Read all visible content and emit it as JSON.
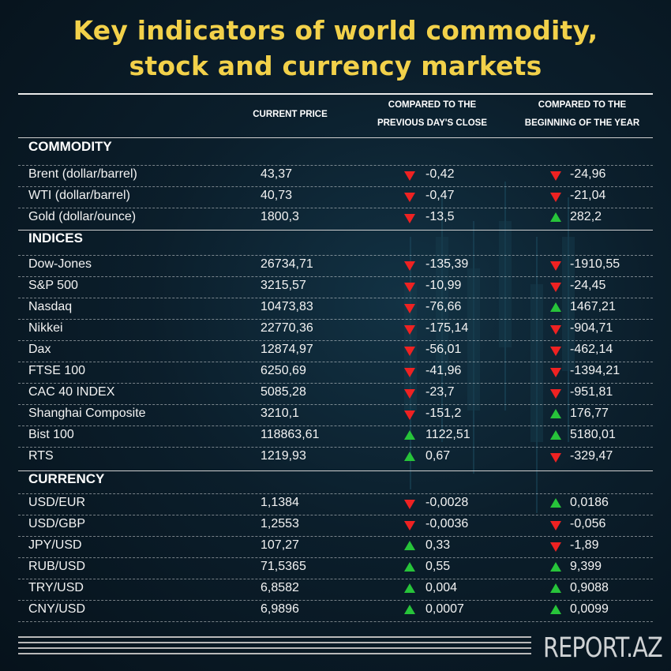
{
  "title": {
    "line1": "Key indicators of world commodity,",
    "line2": "stock and currency markets"
  },
  "columns": {
    "current_price": "CURRENT PRICE",
    "prev_day": [
      "COMPARED TO THE",
      "PREVIOUS DAY'S CLOSE"
    ],
    "year_begin": [
      "COMPARED TO THE",
      "BEGINNING OF THE YEAR"
    ]
  },
  "colors": {
    "title": "#f2d14a",
    "down": "#ee2222",
    "up": "#27c43a"
  },
  "sections": [
    {
      "title": "COMMODITY",
      "rows": [
        {
          "label": "Brent (dollar/barrel)",
          "price": "43,37",
          "d1": "down",
          "v1": "-0,42",
          "d2": "down",
          "v2": "-24,96"
        },
        {
          "label": "WTI (dollar/barrel)",
          "price": "40,73",
          "d1": "down",
          "v1": "-0,47",
          "d2": "down",
          "v2": "-21,04"
        },
        {
          "label": "Gold (dollar/ounce)",
          "price": "1800,3",
          "d1": "down",
          "v1": "-13,5",
          "d2": "up",
          "v2": "282,2"
        }
      ]
    },
    {
      "title": "INDICES",
      "rows": [
        {
          "label": "Dow-Jones",
          "price": "26734,71",
          "d1": "down",
          "v1": "-135,39",
          "d2": "down",
          "v2": "-1910,55"
        },
        {
          "label": "S&P 500",
          "price": "3215,57",
          "d1": "down",
          "v1": "-10,99",
          "d2": "down",
          "v2": "-24,45"
        },
        {
          "label": "Nasdaq",
          "price": "10473,83",
          "d1": "down",
          "v1": "-76,66",
          "d2": "up",
          "v2": "1467,21"
        },
        {
          "label": "Nikkei",
          "price": "22770,36",
          "d1": "down",
          "v1": "-175,14",
          "d2": "down",
          "v2": "-904,71"
        },
        {
          "label": "Dax",
          "price": "12874,97",
          "d1": "down",
          "v1": "-56,01",
          "d2": "down",
          "v2": "-462,14"
        },
        {
          "label": "FTSE 100",
          "price": "6250,69",
          "d1": "down",
          "v1": "-41,96",
          "d2": "down",
          "v2": "-1394,21"
        },
        {
          "label": "CAC 40 INDEX",
          "price": "5085,28",
          "d1": "down",
          "v1": "-23,7",
          "d2": "down",
          "v2": "-951,81"
        },
        {
          "label": "Shanghai Composite",
          "price": "3210,1",
          "d1": "down",
          "v1": "-151,2",
          "d2": "up",
          "v2": "176,77"
        },
        {
          "label": "Bist 100",
          "price": "118863,61",
          "d1": "up",
          "v1": "1122,51",
          "d2": "up",
          "v2": "5180,01"
        },
        {
          "label": "RTS",
          "price": "1219,93",
          "d1": "up",
          "v1": "0,67",
          "d2": "down",
          "v2": "-329,47"
        }
      ]
    },
    {
      "title": "CURRENCY",
      "rows": [
        {
          "label": "USD/EUR",
          "price": "1,1384",
          "d1": "down",
          "v1": "-0,0028",
          "d2": "up",
          "v2": "0,0186"
        },
        {
          "label": "USD/GBP",
          "price": "1,2553",
          "d1": "down",
          "v1": "-0,0036",
          "d2": "down",
          "v2": "-0,056"
        },
        {
          "label": "JPY/USD",
          "price": "107,27",
          "d1": "up",
          "v1": "0,33",
          "d2": "down",
          "v2": "-1,89"
        },
        {
          "label": "RUB/USD",
          "price": "71,5365",
          "d1": "up",
          "v1": "0,55",
          "d2": "up",
          "v2": "9,399"
        },
        {
          "label": "TRY/USD",
          "price": "6,8582",
          "d1": "up",
          "v1": "0,004",
          "d2": "up",
          "v2": "0,9088"
        },
        {
          "label": "CNY/USD",
          "price": "6,9896",
          "d1": "up",
          "v1": "0,0007",
          "d2": "up",
          "v2": "0,0099"
        }
      ]
    }
  ],
  "brand": "REPORT.AZ"
}
